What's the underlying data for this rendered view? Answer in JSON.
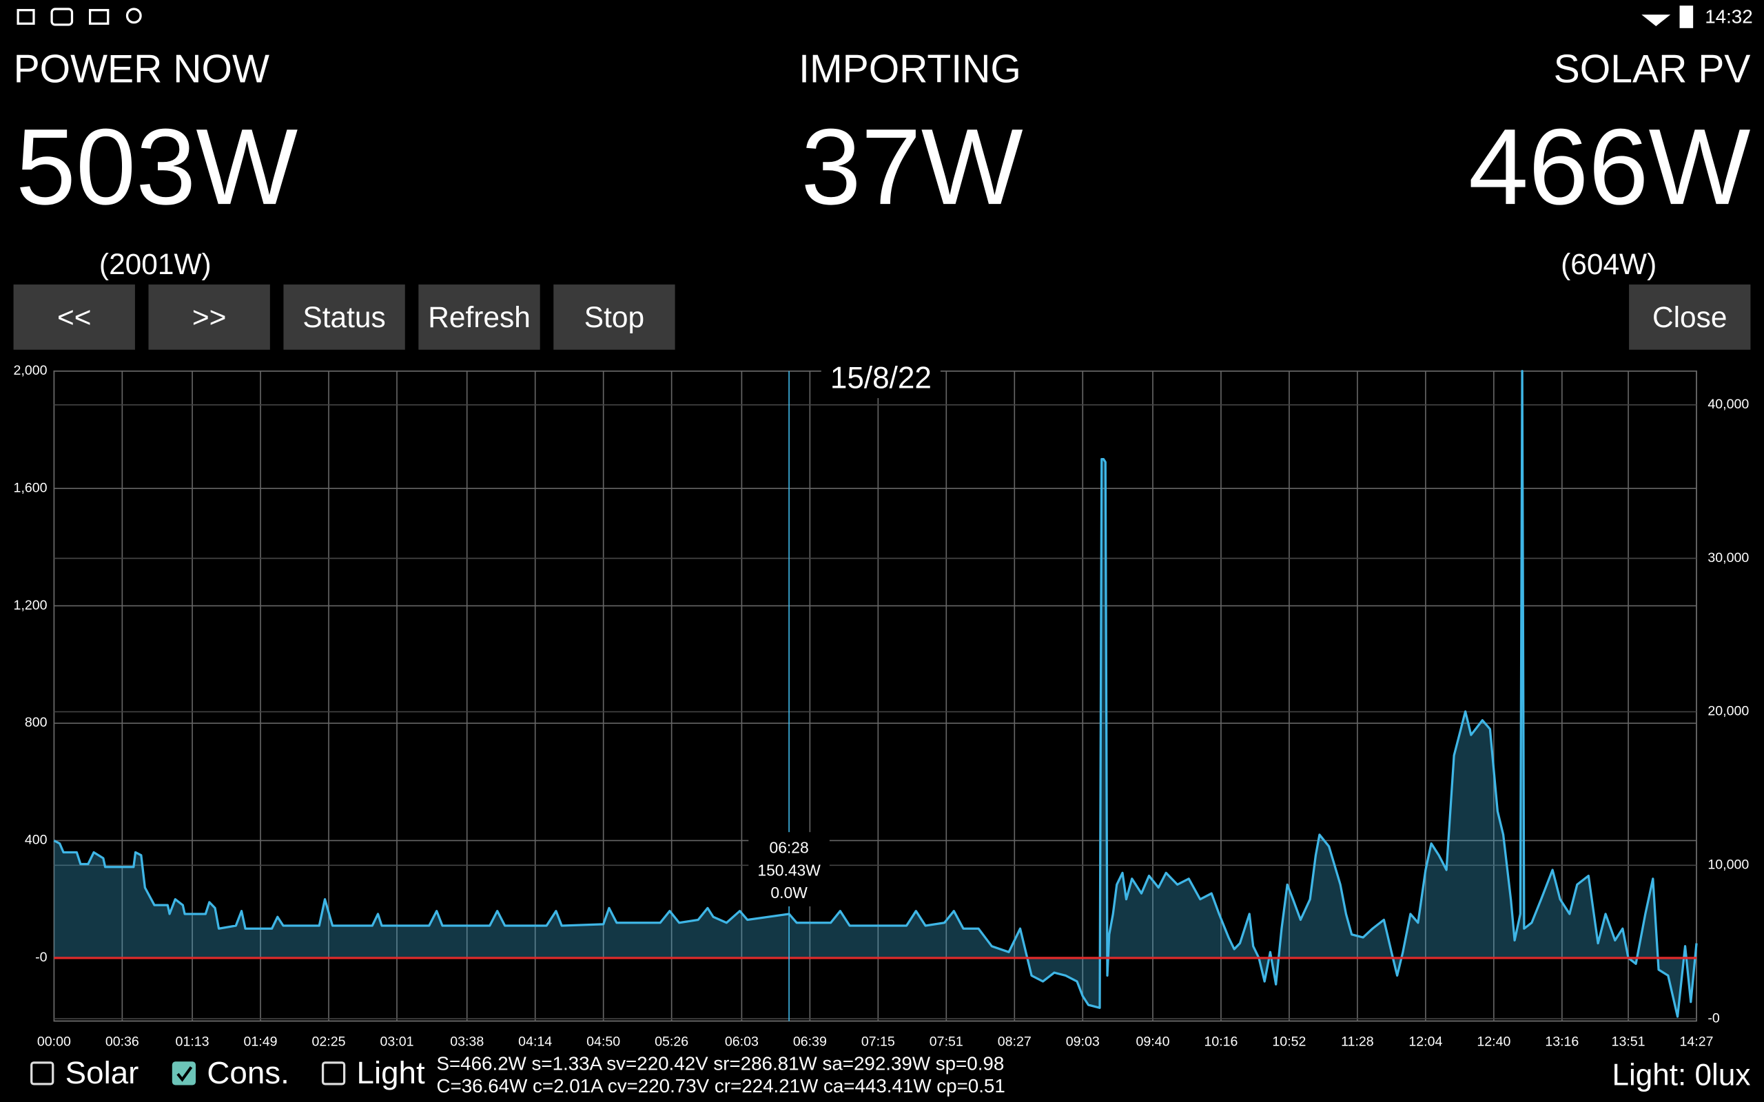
{
  "status_bar": {
    "time": "14:32"
  },
  "header": {
    "power_now": {
      "label": "POWER NOW",
      "value": "503W",
      "peak": "(2001W)",
      "color": "#1a9ad6"
    },
    "importing": {
      "label": "IMPORTING",
      "value": "37W",
      "color": "#f04545"
    },
    "solar_pv": {
      "label": "SOLAR PV",
      "value": "466W",
      "peak": "(604W)",
      "color": "#f7b731"
    }
  },
  "buttons": [
    {
      "label": "<<",
      "color": "#1a9ad6"
    },
    {
      "label": ">>",
      "color": "#f04545"
    },
    {
      "label": "Status",
      "color": "#1a9ad6"
    },
    {
      "label": "Refresh",
      "color": "#f7b731"
    },
    {
      "label": "Stop",
      "color": "#f04545"
    },
    {
      "label": "Close",
      "color": "#f04545"
    }
  ],
  "chart_data": {
    "type": "line",
    "title": "15/8/22",
    "grid": true,
    "xlim": [
      0,
      867
    ],
    "xticks": [
      {
        "value": 0,
        "label": "00:00"
      },
      {
        "value": 36,
        "label": "00:36"
      },
      {
        "value": 73,
        "label": "01:13"
      },
      {
        "value": 109,
        "label": "01:49"
      },
      {
        "value": 145,
        "label": "02:25"
      },
      {
        "value": 181,
        "label": "03:01"
      },
      {
        "value": 218,
        "label": "03:38"
      },
      {
        "value": 254,
        "label": "04:14"
      },
      {
        "value": 290,
        "label": "04:50"
      },
      {
        "value": 326,
        "label": "05:26"
      },
      {
        "value": 363,
        "label": "06:03"
      },
      {
        "value": 399,
        "label": "06:39"
      },
      {
        "value": 435,
        "label": "07:15"
      },
      {
        "value": 471,
        "label": "07:51"
      },
      {
        "value": 507,
        "label": "08:27"
      },
      {
        "value": 543,
        "label": "09:03"
      },
      {
        "value": 580,
        "label": "09:40"
      },
      {
        "value": 616,
        "label": "10:16"
      },
      {
        "value": 652,
        "label": "10:52"
      },
      {
        "value": 688,
        "label": "11:28"
      },
      {
        "value": 724,
        "label": "12:04"
      },
      {
        "value": 760,
        "label": "12:40"
      },
      {
        "value": 796,
        "label": "13:16"
      },
      {
        "value": 831,
        "label": "13:51"
      },
      {
        "value": 867,
        "label": "14:27"
      }
    ],
    "ylim": [
      -215,
      2000
    ],
    "yticks": [
      {
        "value": 2000,
        "label": "2,000"
      },
      {
        "value": 1600,
        "label": "1,600"
      },
      {
        "value": 1200,
        "label": "1,200"
      },
      800,
      400,
      {
        "value": 0,
        "label": "-0"
      }
    ],
    "y2lim": [
      -150,
      42200
    ],
    "y2ticks": [
      {
        "value": 40000,
        "label": "40,000"
      },
      {
        "value": 30000,
        "label": "30,000"
      },
      {
        "value": 20000,
        "label": "20,000"
      },
      {
        "value": 10000,
        "label": "10,000"
      },
      {
        "value": 0,
        "label": "-0"
      }
    ],
    "zero_color": "#e02a2a",
    "series": [
      {
        "name": "Cons.",
        "color": "#3fb6e6",
        "x": [
          0,
          3,
          5,
          12,
          14,
          18,
          21,
          26,
          27,
          42,
          43,
          46,
          48,
          53,
          60,
          61,
          64,
          68,
          69,
          80,
          82,
          85,
          87,
          96,
          99,
          101,
          115,
          118,
          121,
          140,
          143,
          147,
          168,
          171,
          173,
          198,
          202,
          205,
          230,
          234,
          238,
          260,
          265,
          268,
          290,
          293,
          297,
          320,
          325,
          330,
          340,
          345,
          348,
          355,
          362,
          366,
          388,
          392,
          410,
          415,
          420,
          450,
          455,
          460,
          470,
          475,
          480,
          488,
          495,
          504,
          510,
          513,
          516,
          522,
          528,
          534,
          540,
          543,
          546,
          552,
          553,
          554,
          555,
          556,
          557,
          559,
          561,
          564,
          566,
          569,
          574,
          578,
          583,
          587,
          593,
          599,
          605,
          611,
          615,
          620,
          623,
          626,
          631,
          633,
          636,
          639,
          642,
          645,
          648,
          651,
          654,
          658,
          663,
          666,
          668,
          673,
          679,
          682,
          685,
          691,
          696,
          702,
          706,
          709,
          712,
          716,
          720,
          724,
          727,
          731,
          735,
          739,
          745,
          748,
          754,
          758,
          762,
          765,
          769,
          771,
          774,
          775,
          776,
          780,
          785,
          791,
          795,
          800,
          804,
          810,
          815,
          819,
          824,
          828,
          831,
          835,
          840,
          844,
          847,
          852,
          857,
          861,
          864,
          867
        ],
        "values": [
          400,
          390,
          360,
          360,
          320,
          320,
          360,
          340,
          310,
          310,
          360,
          350,
          240,
          180,
          180,
          150,
          200,
          180,
          150,
          150,
          190,
          170,
          100,
          110,
          160,
          100,
          100,
          140,
          110,
          110,
          200,
          110,
          110,
          150,
          110,
          110,
          160,
          110,
          110,
          160,
          110,
          110,
          160,
          110,
          115,
          170,
          120,
          120,
          160,
          120,
          130,
          170,
          140,
          120,
          160,
          130,
          150,
          120,
          120,
          160,
          110,
          110,
          160,
          110,
          120,
          160,
          100,
          100,
          40,
          20,
          100,
          20,
          -60,
          -80,
          -50,
          -60,
          -80,
          -130,
          -160,
          -170,
          1700,
          1700,
          1690,
          -60,
          80,
          150,
          250,
          290,
          200,
          270,
          220,
          280,
          240,
          290,
          250,
          270,
          200,
          220,
          150,
          70,
          30,
          50,
          150,
          40,
          0,
          -80,
          20,
          -90,
          100,
          250,
          200,
          130,
          200,
          350,
          420,
          380,
          250,
          150,
          80,
          70,
          100,
          130,
          20,
          -60,
          20,
          150,
          120,
          300,
          390,
          350,
          300,
          690,
          840,
          760,
          810,
          780,
          500,
          420,
          200,
          60,
          150,
          2000,
          100,
          120,
          200,
          300,
          200,
          150,
          250,
          280,
          50,
          150,
          60,
          100,
          0,
          -20,
          150,
          270,
          -40,
          -60,
          -200,
          40,
          -150,
          50
        ]
      }
    ],
    "tooltip": {
      "x": {
        "value": 388,
        "label": "06:28"
      },
      "lines": [
        {
          "text": "150.43W",
          "color": "#3fb6e6"
        },
        {
          "text": "0.0W",
          "color": "#f7b731"
        }
      ]
    }
  },
  "toggles": [
    {
      "label": "Solar",
      "checked": false
    },
    {
      "label": "Light",
      "checked": false
    }
  ],
  "cons_checked": true,
  "stats": [
    "S=466.2W s=1.33A sv=220.42V sr=286.81W sa=292.39W sp=0.98",
    "C=36.64W c=2.01A cv=220.73V cr=224.21W ca=443.41W cp=0.51"
  ],
  "light": "Light: 0lux"
}
